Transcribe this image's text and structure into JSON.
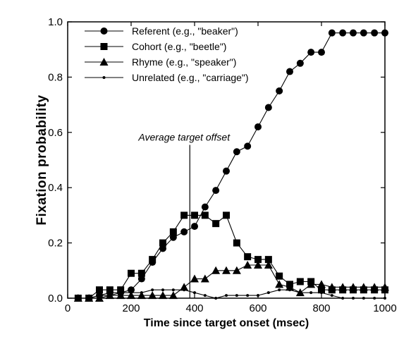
{
  "chart_data": {
    "type": "line",
    "title": "",
    "xlabel": "Time since target onset (msec)",
    "ylabel": "Fixation  probability",
    "xlim": [
      0,
      1000
    ],
    "ylim": [
      0,
      1.0
    ],
    "x_ticks": [
      "0",
      "200",
      "400",
      "600",
      "800",
      "1000"
    ],
    "y_ticks": [
      "0.0",
      "0.2",
      "0.4",
      "0.6",
      "0.8",
      "1.0"
    ],
    "grid": false,
    "legend_position": "top-left",
    "series": [
      {
        "name": "Referent (e.g., \"beaker\")",
        "marker": "circle",
        "x": [
          33,
          67,
          100,
          133,
          167,
          200,
          233,
          267,
          300,
          333,
          367,
          400,
          433,
          467,
          500,
          533,
          567,
          600,
          633,
          667,
          700,
          733,
          767,
          800,
          833,
          867,
          900,
          933,
          967,
          1000
        ],
        "y": [
          0.0,
          0.0,
          0.01,
          0.02,
          0.02,
          0.03,
          0.07,
          0.13,
          0.18,
          0.22,
          0.24,
          0.26,
          0.33,
          0.39,
          0.46,
          0.53,
          0.55,
          0.62,
          0.69,
          0.75,
          0.82,
          0.85,
          0.89,
          0.89,
          0.96,
          0.96,
          0.96,
          0.96,
          0.96,
          0.96
        ]
      },
      {
        "name": "Cohort (e.g., \"beetle\")",
        "marker": "square",
        "x": [
          33,
          67,
          100,
          133,
          167,
          200,
          233,
          267,
          300,
          333,
          367,
          400,
          433,
          467,
          500,
          533,
          567,
          600,
          633,
          667,
          700,
          733,
          767,
          800,
          833,
          867,
          900,
          933,
          967,
          1000
        ],
        "y": [
          0.0,
          0.0,
          0.03,
          0.03,
          0.03,
          0.09,
          0.09,
          0.14,
          0.2,
          0.24,
          0.3,
          0.3,
          0.3,
          0.27,
          0.3,
          0.2,
          0.15,
          0.14,
          0.14,
          0.08,
          0.05,
          0.06,
          0.06,
          0.03,
          0.03,
          0.03,
          0.03,
          0.03,
          0.03,
          0.03
        ]
      },
      {
        "name": "Rhyme (e.g., \"speaker\")",
        "marker": "triangle",
        "x": [
          33,
          67,
          100,
          133,
          167,
          200,
          233,
          267,
          300,
          333,
          367,
          400,
          433,
          467,
          500,
          533,
          567,
          600,
          633,
          667,
          700,
          733,
          767,
          800,
          833,
          867,
          900,
          933,
          967,
          1000
        ],
        "y": [
          0.0,
          0.0,
          0.0,
          0.01,
          0.01,
          0.01,
          0.01,
          0.01,
          0.01,
          0.01,
          0.04,
          0.07,
          0.07,
          0.1,
          0.1,
          0.1,
          0.12,
          0.12,
          0.12,
          0.05,
          0.04,
          0.02,
          0.05,
          0.05,
          0.04,
          0.04,
          0.04,
          0.04,
          0.04,
          0.04
        ]
      },
      {
        "name": "Unrelated (e.g., \"carriage\")",
        "marker": "dot",
        "x": [
          33,
          67,
          100,
          133,
          167,
          200,
          233,
          267,
          300,
          333,
          367,
          400,
          433,
          467,
          500,
          533,
          567,
          600,
          633,
          667,
          700,
          733,
          767,
          800,
          833,
          867,
          900,
          933,
          967,
          1000
        ],
        "y": [
          0.0,
          0.0,
          0.01,
          0.01,
          0.02,
          0.02,
          0.02,
          0.03,
          0.03,
          0.03,
          0.03,
          0.02,
          0.01,
          0.0,
          0.01,
          0.01,
          0.01,
          0.01,
          0.02,
          0.03,
          0.03,
          0.02,
          0.02,
          0.02,
          0.01,
          0.0,
          0.0,
          0.0,
          0.0,
          0.0
        ]
      }
    ],
    "annotations": [
      {
        "text": "Average target offset",
        "type": "vline",
        "x": 385,
        "y_top": 0.57
      }
    ]
  }
}
